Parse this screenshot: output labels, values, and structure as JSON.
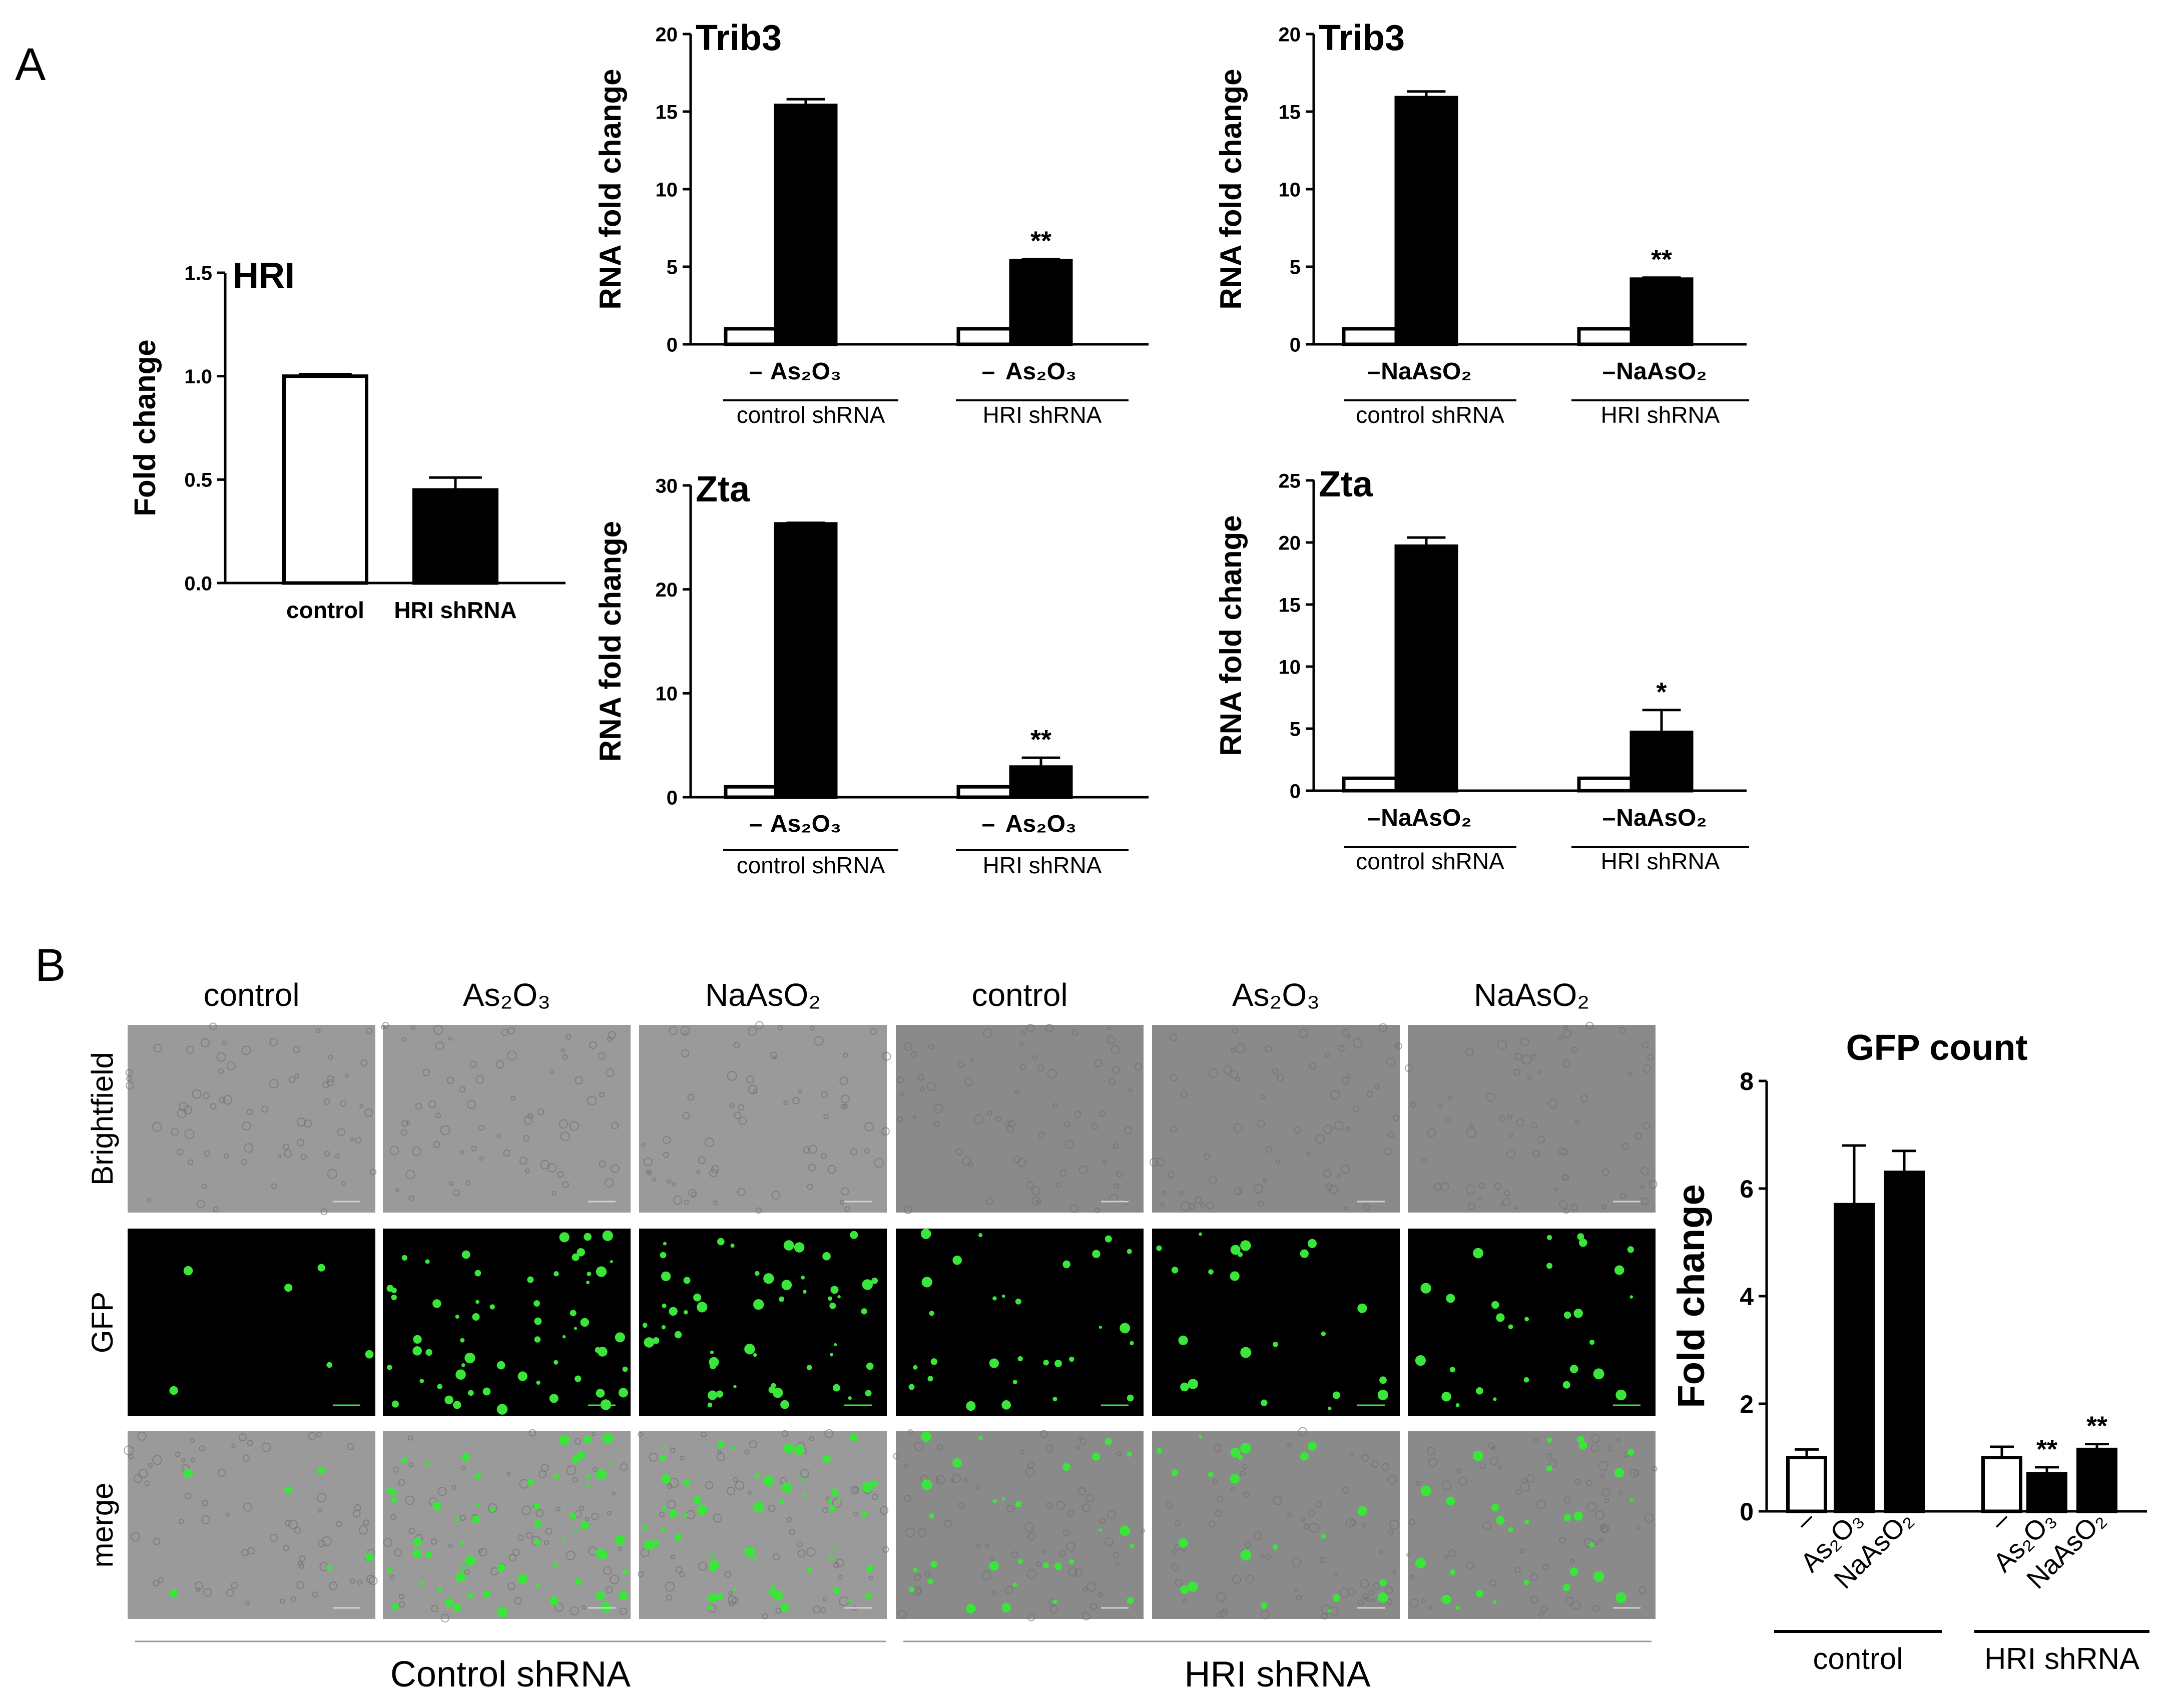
{
  "panel_labels": {
    "a": "A",
    "b": "B"
  },
  "colors": {
    "bar_filled": "#000000",
    "bar_open": "#ffffff",
    "gfp": "#39e639",
    "micro_bg": "#808080"
  },
  "chart_data": [
    {
      "id": "hri",
      "type": "bar",
      "title": "HRI",
      "ylabel": "Fold change",
      "ylim": [
        0,
        1.5
      ],
      "yticks": [
        "0.0",
        "0.5",
        "1.0",
        "1.5"
      ],
      "categories": [
        "control",
        "HRI shRNA"
      ],
      "values": [
        1.0,
        0.45
      ],
      "errors": [
        0.01,
        0.06
      ],
      "fills": [
        "open",
        "filled"
      ]
    },
    {
      "id": "trib3-as2o3",
      "type": "bar",
      "title": "Trib3",
      "ylabel": "RNA fold change",
      "ylim": [
        0,
        20
      ],
      "yticks": [
        "0",
        "5",
        "10",
        "15",
        "20"
      ],
      "categories": [
        "–",
        "As2O3",
        "–",
        "As2O3"
      ],
      "values": [
        1.0,
        15.4,
        1.0,
        5.4
      ],
      "errors": [
        0,
        0.4,
        0,
        0.1
      ],
      "fills": [
        "open",
        "filled",
        "open",
        "filled"
      ],
      "significance": [
        "",
        "",
        "",
        "**"
      ],
      "groups": [
        "control shRNA",
        "HRI shRNA"
      ]
    },
    {
      "id": "trib3-naaso2",
      "type": "bar",
      "title": "Trib3",
      "ylabel": "RNA fold change",
      "ylim": [
        0,
        20
      ],
      "yticks": [
        "0",
        "5",
        "10",
        "15",
        "20"
      ],
      "categories": [
        "–",
        "NaAsO2",
        "–",
        "NaAsO2"
      ],
      "values": [
        1.0,
        15.9,
        1.0,
        4.2
      ],
      "errors": [
        0,
        0.4,
        0,
        0.1
      ],
      "fills": [
        "open",
        "filled",
        "open",
        "filled"
      ],
      "significance": [
        "",
        "",
        "",
        "**"
      ],
      "groups": [
        "control shRNA",
        "HRI shRNA"
      ]
    },
    {
      "id": "zta-as2o3",
      "type": "bar",
      "title": "Zta",
      "ylabel": "RNA fold change",
      "ylim": [
        0,
        30
      ],
      "yticks": [
        "0",
        "10",
        "20",
        "30"
      ],
      "categories": [
        "–",
        "As2O3",
        "–",
        "As2O3"
      ],
      "values": [
        1.0,
        26.3,
        1.0,
        2.9
      ],
      "errors": [
        0,
        0.1,
        0,
        0.9
      ],
      "fills": [
        "open",
        "filled",
        "open",
        "filled"
      ],
      "significance": [
        "",
        "",
        "",
        "**"
      ],
      "groups": [
        "control shRNA",
        "HRI shRNA"
      ]
    },
    {
      "id": "zta-naaso2",
      "type": "bar",
      "title": "Zta",
      "ylabel": "RNA fold change",
      "ylim": [
        0,
        25
      ],
      "yticks": [
        "0",
        "5",
        "10",
        "15",
        "20",
        "25"
      ],
      "categories": [
        "–",
        "NaAsO2",
        "–",
        "NaAsO2"
      ],
      "values": [
        1.0,
        19.7,
        1.0,
        4.7
      ],
      "errors": [
        0,
        0.7,
        0,
        1.8
      ],
      "fills": [
        "open",
        "filled",
        "open",
        "filled"
      ],
      "significance": [
        "",
        "",
        "",
        "*"
      ],
      "groups": [
        "control shRNA",
        "HRI shRNA"
      ]
    },
    {
      "id": "gfp-count",
      "type": "bar",
      "title": "GFP count",
      "ylabel": "Fold change",
      "ylim": [
        0,
        8
      ],
      "yticks": [
        "0",
        "2",
        "4",
        "6",
        "8"
      ],
      "categories": [
        "–",
        "As2O3",
        "NaAsO2",
        "–",
        "As2O3",
        "NaAsO2"
      ],
      "values": [
        1.0,
        5.7,
        6.3,
        1.0,
        0.7,
        1.15
      ],
      "errors": [
        0.15,
        1.1,
        0.4,
        0.2,
        0.12,
        0.1
      ],
      "fills": [
        "open",
        "filled",
        "filled",
        "open",
        "filled",
        "filled"
      ],
      "significance": [
        "",
        "",
        "",
        "",
        "**",
        "**"
      ],
      "groups": [
        "control",
        "HRI shRNA"
      ]
    }
  ],
  "micrographs": {
    "column_headers": [
      "control",
      "As2O3",
      "NaAsO₂",
      "control",
      "As2O3",
      "NaAsO₂"
    ],
    "row_labels": [
      "Brightfield",
      "GFP",
      "merge"
    ],
    "group_labels": [
      "Control shRNA",
      "HRI shRNA"
    ]
  }
}
